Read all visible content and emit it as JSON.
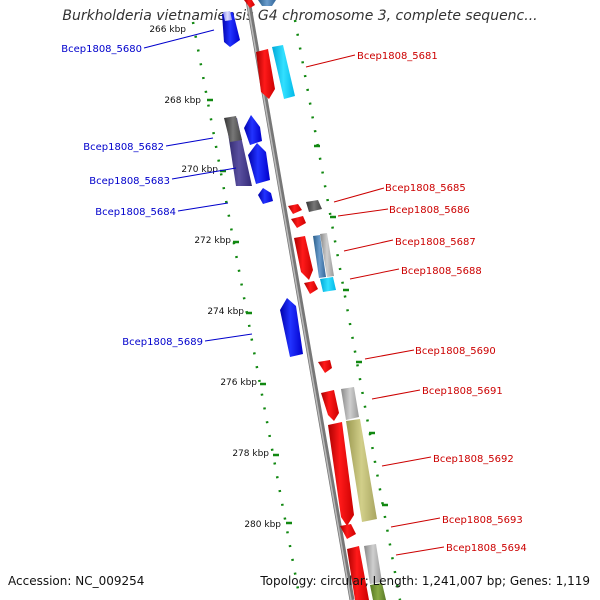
{
  "title": "Burkholderia vietnamiensis G4 chromosome 3, complete sequenc...",
  "accession": "Accession: NC_009254",
  "topology": "Topology: circular; Length: 1,241,007 bp; Genes: 1,119",
  "scale": {
    "ticks": [
      {
        "label": "266 kbp",
        "value": 266
      },
      {
        "label": "268 kbp",
        "value": 268
      },
      {
        "label": "270 kbp",
        "value": 270
      },
      {
        "label": "272 kbp",
        "value": 272
      },
      {
        "label": "274 kbp",
        "value": 274
      },
      {
        "label": "276 kbp",
        "value": 276
      },
      {
        "label": "278 kbp",
        "value": 278
      },
      {
        "label": "280 kbp",
        "value": 280
      }
    ]
  },
  "genes": [
    {
      "label": "Bcep1808_5680",
      "strand": "reverse",
      "color": "#0000cc"
    },
    {
      "label": "Bcep1808_5681",
      "strand": "forward",
      "color": "#cc0000"
    },
    {
      "label": "Bcep1808_5682",
      "strand": "reverse",
      "color": "#0000cc"
    },
    {
      "label": "Bcep1808_5683",
      "strand": "reverse",
      "color": "#0000cc"
    },
    {
      "label": "Bcep1808_5684",
      "strand": "reverse",
      "color": "#0000cc"
    },
    {
      "label": "Bcep1808_5685",
      "strand": "forward",
      "color": "#cc0000"
    },
    {
      "label": "Bcep1808_5686",
      "strand": "forward",
      "color": "#cc0000"
    },
    {
      "label": "Bcep1808_5687",
      "strand": "forward",
      "color": "#cc0000"
    },
    {
      "label": "Bcep1808_5688",
      "strand": "forward",
      "color": "#cc0000"
    },
    {
      "label": "Bcep1808_5689",
      "strand": "reverse",
      "color": "#0000cc"
    },
    {
      "label": "Bcep1808_5690",
      "strand": "forward",
      "color": "#cc0000"
    },
    {
      "label": "Bcep1808_5691",
      "strand": "forward",
      "color": "#cc0000"
    },
    {
      "label": "Bcep1808_5692",
      "strand": "forward",
      "color": "#cc0000"
    },
    {
      "label": "Bcep1808_5693",
      "strand": "forward",
      "color": "#cc0000"
    },
    {
      "label": "Bcep1808_5694",
      "strand": "forward",
      "color": "#cc0000"
    }
  ],
  "colors": {
    "forward_gene": "#ee0000",
    "reverse_gene": "#0000ee",
    "backbone": "#888888",
    "tick_marks": "#118811"
  }
}
